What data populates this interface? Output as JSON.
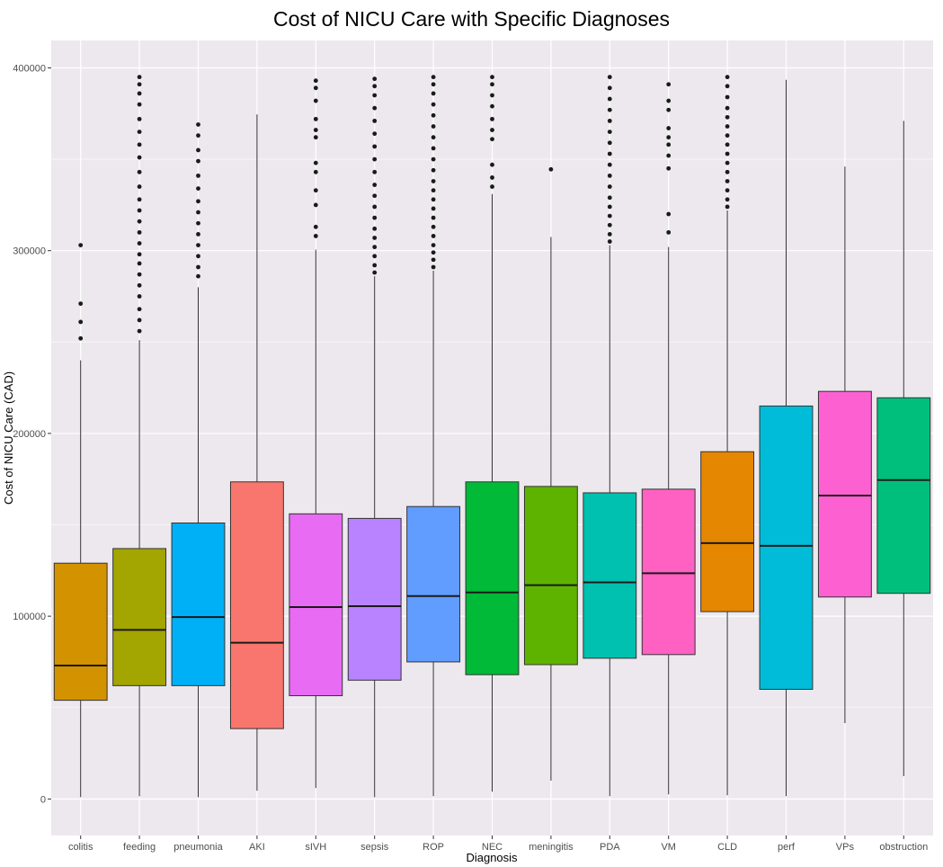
{
  "chart_data": {
    "type": "boxplot",
    "title": "Cost of NICU Care with Specific Diagnoses",
    "xlabel": "Diagnosis",
    "ylabel": "Cost of NICU Care (CAD)",
    "ylim": [
      -20000,
      415000
    ],
    "yticks": [
      0,
      100000,
      200000,
      300000,
      400000
    ],
    "ytick_labels": [
      "0",
      "100000",
      "200000",
      "300000",
      "400000"
    ],
    "categories": [
      "colitis",
      "feeding",
      "pneumonia",
      "AKI",
      "sIVH",
      "sepsis",
      "ROP",
      "NEC",
      "meningitis",
      "PDA",
      "VM",
      "CLD",
      "perf",
      "VPs",
      "obstruction"
    ],
    "colors": [
      "#D39200",
      "#A3A500",
      "#00B0F6",
      "#F8766D",
      "#E76BF3",
      "#B983FF",
      "#619CFF",
      "#00BA38",
      "#5EB300",
      "#00C0AF",
      "#FF61C3",
      "#E58700",
      "#00BCD8",
      "#FD61D1",
      "#00BF7D"
    ],
    "boxes": [
      {
        "min": 1000,
        "q1": 54000,
        "median": 73000,
        "q3": 129000,
        "max": 240000,
        "outliers": [
          252000,
          261000,
          271000,
          303000
        ]
      },
      {
        "min": 1500,
        "q1": 62000,
        "median": 92500,
        "q3": 137000,
        "max": 251000,
        "outliers": [
          256000,
          262000,
          268000,
          275000,
          281000,
          287000,
          293000,
          298000,
          304000,
          310000,
          316000,
          322000,
          328000,
          335000,
          343000,
          351000,
          358000,
          365000,
          372000,
          380000,
          386000,
          391000,
          395000
        ]
      },
      {
        "min": 1000,
        "q1": 62000,
        "median": 99500,
        "q3": 151000,
        "max": 280000,
        "outliers": [
          286000,
          291000,
          297000,
          303000,
          309000,
          315000,
          321000,
          327000,
          334000,
          341000,
          349000,
          355000,
          363000,
          369000
        ]
      },
      {
        "min": 4500,
        "q1": 38500,
        "median": 85500,
        "q3": 173500,
        "max": 374500,
        "outliers": []
      },
      {
        "min": 6000,
        "q1": 56500,
        "median": 105000,
        "q3": 156000,
        "max": 300500,
        "outliers": [
          308000,
          313000,
          325000,
          333000,
          343000,
          348000,
          362000,
          366000,
          372000,
          382000,
          389000,
          393000
        ]
      },
      {
        "min": 1000,
        "q1": 65000,
        "median": 105500,
        "q3": 153500,
        "max": 286000,
        "outliers": [
          288000,
          292000,
          297000,
          302000,
          307000,
          312000,
          318000,
          324000,
          330000,
          336000,
          343000,
          350000,
          357000,
          364000,
          371000,
          378000,
          385000,
          390000,
          394000
        ]
      },
      {
        "min": 1500,
        "q1": 75000,
        "median": 111000,
        "q3": 160000,
        "max": 289000,
        "outliers": [
          291000,
          295000,
          299000,
          303000,
          308000,
          313000,
          318000,
          323000,
          328000,
          333000,
          338000,
          344000,
          350000,
          356000,
          362000,
          368000,
          374000,
          380000,
          386000,
          391000,
          395000
        ]
      },
      {
        "min": 4000,
        "q1": 68000,
        "median": 113000,
        "q3": 173500,
        "max": 331000,
        "outliers": [
          335000,
          340000,
          347000,
          361000,
          366000,
          372000,
          379000,
          385000,
          391000,
          395000
        ]
      },
      {
        "min": 10000,
        "q1": 73500,
        "median": 117000,
        "q3": 171000,
        "max": 307500,
        "outliers": [
          344500
        ]
      },
      {
        "min": 1500,
        "q1": 77000,
        "median": 118500,
        "q3": 167500,
        "max": 303000,
        "outliers": [
          305000,
          309000,
          314000,
          319000,
          324000,
          329000,
          335000,
          341000,
          347000,
          353000,
          359000,
          365000,
          371000,
          377000,
          383000,
          389000,
          395000
        ]
      },
      {
        "min": 2500,
        "q1": 79000,
        "median": 123500,
        "q3": 169500,
        "max": 302000,
        "outliers": [
          310000,
          320000,
          345000,
          352000,
          358000,
          362000,
          367000,
          377000,
          382000,
          391000
        ]
      },
      {
        "min": 2000,
        "q1": 102500,
        "median": 140000,
        "q3": 190000,
        "max": 322000,
        "outliers": [
          324000,
          328000,
          333000,
          338000,
          343000,
          348000,
          353000,
          358000,
          363000,
          368000,
          373000,
          378000,
          384000,
          390000,
          395000
        ]
      },
      {
        "min": 1500,
        "q1": 60000,
        "median": 138500,
        "q3": 215000,
        "max": 393500,
        "outliers": []
      },
      {
        "min": 41500,
        "q1": 110500,
        "median": 166000,
        "q3": 223000,
        "max": 346000,
        "outliers": []
      },
      {
        "min": 12500,
        "q1": 112500,
        "median": 174500,
        "q3": 219500,
        "max": 371000,
        "outliers": []
      }
    ]
  }
}
